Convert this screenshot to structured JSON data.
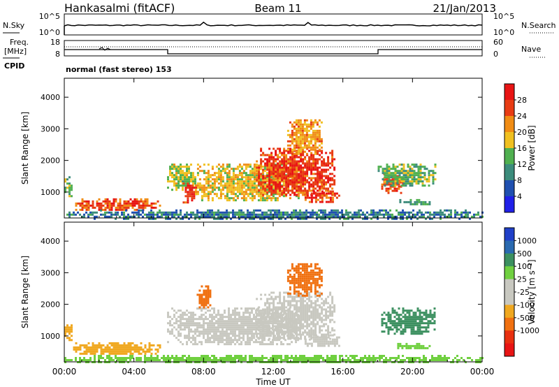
{
  "header": {
    "radar": "Hankasalmi (fitACF)",
    "beam": "Beam 11",
    "date": "21/Jan/2013"
  },
  "noise_panel": {
    "left_label": "N.Sky",
    "right_label": "N.Search",
    "left_ticks": [
      "10^5",
      "10^0"
    ],
    "right_ticks": [
      "10^5",
      "10^0"
    ]
  },
  "freq_panel": {
    "left_label_1": "Freq.",
    "left_label_2": "[MHz]",
    "right_label": "Nave",
    "left_ticks": [
      "18",
      "8"
    ],
    "right_ticks": [
      "60",
      "0"
    ],
    "cpid_label": "CPID",
    "cpid_text": "normal (fast stereo) 153"
  },
  "chart_data": [
    {
      "type": "heatmap",
      "name": "power",
      "ylabel": "Slant Range [km]",
      "ylim": [
        180,
        4600
      ],
      "yticks": [
        1000,
        2000,
        3000,
        4000
      ],
      "colorbar": {
        "label": "Power [dB]",
        "range": [
          0,
          32
        ],
        "ticks": [
          "4",
          "8",
          "12",
          "16",
          "20",
          "24",
          "28"
        ],
        "colors": [
          "#2020e8",
          "#2050b0",
          "#3c8c7c",
          "#50b050",
          "#f0c020",
          "#f08c14",
          "#e83c14",
          "#e81414"
        ]
      },
      "echo_regions": [
        {
          "t0": 0.0,
          "t1": 0.4,
          "r0": 900,
          "r1": 1500,
          "level": 0.4
        },
        {
          "t0": 0.5,
          "t1": 5.5,
          "r0": 420,
          "r1": 800,
          "level": 0.9
        },
        {
          "t0": 5.9,
          "t1": 7.5,
          "r0": 1100,
          "r1": 1900,
          "level": 0.5
        },
        {
          "t0": 6.8,
          "t1": 7.6,
          "r0": 700,
          "r1": 1300,
          "level": 1.0
        },
        {
          "t0": 7.5,
          "t1": 13.5,
          "r0": 750,
          "r1": 1900,
          "level": 0.6
        },
        {
          "t0": 11.0,
          "t1": 15.5,
          "r0": 900,
          "r1": 2400,
          "level": 0.95
        },
        {
          "t0": 12.8,
          "t1": 14.8,
          "r0": 2200,
          "r1": 3300,
          "level": 0.7
        },
        {
          "t0": 13.8,
          "t1": 15.8,
          "r0": 700,
          "r1": 1050,
          "level": 0.95
        },
        {
          "t0": 18.2,
          "t1": 19.5,
          "r0": 1000,
          "r1": 1600,
          "level": 0.9
        },
        {
          "t0": 18.0,
          "t1": 21.3,
          "r0": 1200,
          "r1": 1900,
          "level": 0.4
        },
        {
          "t0": 19.0,
          "t1": 21.0,
          "r0": 620,
          "r1": 780,
          "level": 0.3
        },
        {
          "t0": 0.0,
          "t1": 24.0,
          "r0": 180,
          "r1": 450,
          "level": 0.2
        }
      ]
    },
    {
      "type": "heatmap",
      "name": "velocity",
      "xlabel": "Time UT",
      "ylabel": "Slant Range [km]",
      "xlim": [
        0,
        24
      ],
      "xticks": [
        "00:00",
        "04:00",
        "08:00",
        "12:00",
        "16:00",
        "20:00",
        "00:00"
      ],
      "ylim": [
        180,
        4600
      ],
      "yticks": [
        1000,
        2000,
        3000,
        4000
      ],
      "colorbar": {
        "label": "Velocity [m s⁻¹]",
        "ticks": [
          "1000",
          "500",
          "100",
          "25",
          "-25",
          "-100",
          "-500",
          "-1000"
        ],
        "colors": [
          "#2040c8",
          "#2a6ab0",
          "#3c9060",
          "#70d040",
          "#c8c8c0",
          "#c8c8c0",
          "#f0a820",
          "#f07010",
          "#e83010",
          "#e81414"
        ]
      },
      "echo_regions": [
        {
          "t0": 0.0,
          "t1": 0.4,
          "r0": 900,
          "r1": 1500,
          "color": "#f0a820"
        },
        {
          "t0": 0.5,
          "t1": 5.5,
          "r0": 420,
          "r1": 800,
          "color": "#f0a820"
        },
        {
          "t0": 5.9,
          "t1": 13.5,
          "r0": 750,
          "r1": 1900,
          "color": "#c8c8c0"
        },
        {
          "t0": 11.0,
          "t1": 15.5,
          "r0": 900,
          "r1": 2400,
          "color": "#c8c8c0"
        },
        {
          "t0": 12.8,
          "t1": 14.8,
          "r0": 2300,
          "r1": 3300,
          "color": "#f07010"
        },
        {
          "t0": 7.6,
          "t1": 8.4,
          "r0": 1900,
          "r1": 2600,
          "color": "#f07010"
        },
        {
          "t0": 13.8,
          "t1": 15.8,
          "r0": 700,
          "r1": 1050,
          "color": "#c8c8c0"
        },
        {
          "t0": 18.2,
          "t1": 21.3,
          "r0": 1100,
          "r1": 1900,
          "color": "#3c9060"
        },
        {
          "t0": 19.0,
          "t1": 21.0,
          "r0": 620,
          "r1": 780,
          "color": "#70d040"
        },
        {
          "t0": 0.0,
          "t1": 24.0,
          "r0": 180,
          "r1": 400,
          "color": "#70d040"
        }
      ]
    }
  ]
}
